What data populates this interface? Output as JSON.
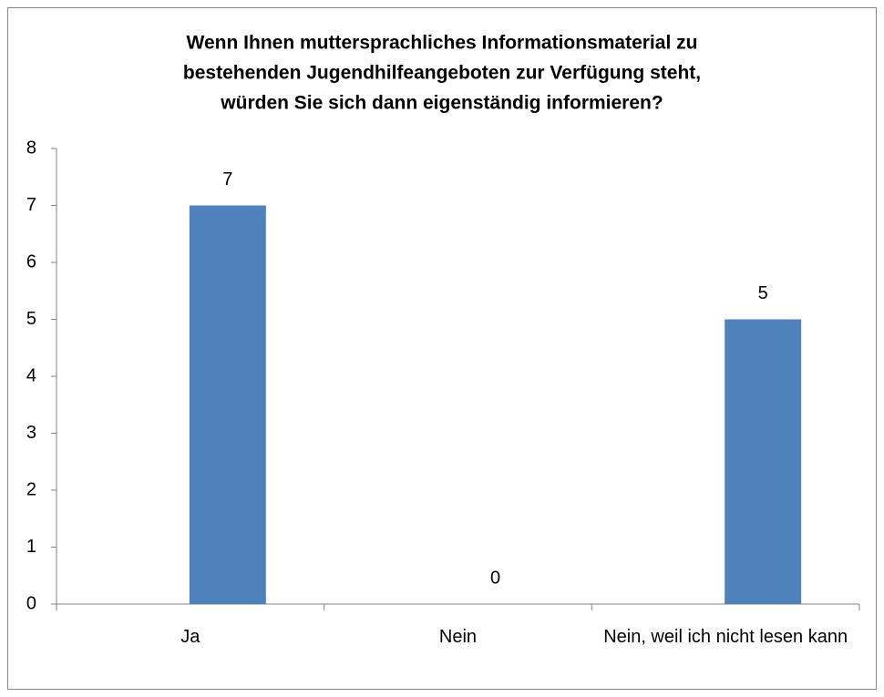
{
  "chart_data": {
    "type": "bar",
    "title": [
      "Wenn Ihnen muttersprachliches Informationsmaterial zu",
      "bestehenden Jugendhilfeangeboten zur Verfügung steht,",
      "würden Sie sich dann eigenständig informieren?"
    ],
    "categories": [
      "Ja",
      "Nein",
      "Nein, weil ich nicht lesen kann"
    ],
    "values": [
      7,
      0,
      5
    ],
    "color": "#4f81bd",
    "ylim": [
      0,
      8
    ],
    "yticks": [
      0,
      1,
      2,
      3,
      4,
      5,
      6,
      7,
      8
    ],
    "grid": false
  }
}
